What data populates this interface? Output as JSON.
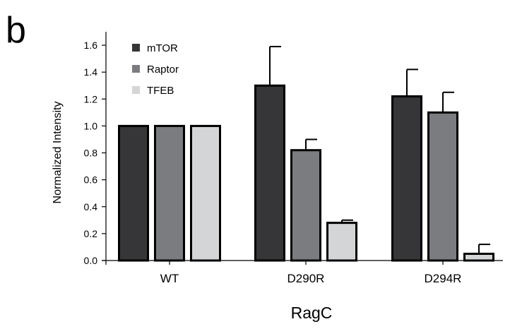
{
  "panel_label": "b",
  "chart_data": {
    "type": "bar",
    "categories": [
      "WT",
      "D290R",
      "D294R"
    ],
    "series": [
      {
        "name": "mTOR",
        "color": "#363639",
        "values": [
          1.0,
          1.3,
          1.22
        ],
        "errors": [
          null,
          0.29,
          0.2
        ]
      },
      {
        "name": "Raptor",
        "color": "#7b7c80",
        "values": [
          1.0,
          0.82,
          1.1
        ],
        "errors": [
          null,
          0.08,
          0.15
        ]
      },
      {
        "name": "TFEB",
        "color": "#d4d5d7",
        "values": [
          1.0,
          0.28,
          0.05
        ],
        "errors": [
          null,
          0.02,
          0.07
        ]
      }
    ],
    "xlabel": "RagC",
    "ylabel": "Normalized Intensity",
    "ylim": [
      0,
      1.7
    ],
    "yticks": [
      "0.0",
      "0.2",
      "0.4",
      "0.6",
      "0.8",
      "1.0",
      "1.2",
      "1.4",
      "1.6"
    ],
    "legend_position": "top-left",
    "grid": false
  }
}
